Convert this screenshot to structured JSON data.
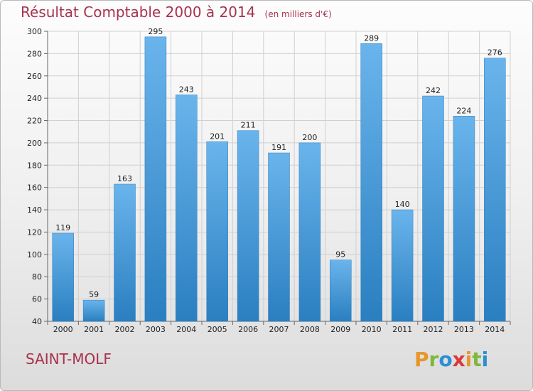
{
  "header": {
    "title": "Résultat Comptable 2000 à 2014",
    "subtitle": "(en milliers d'€)"
  },
  "footer": {
    "commune": "SAINT-MOLF",
    "logo_text": "Proxiti",
    "logo_colors": [
      "#e8962a",
      "#7db83a",
      "#2a8fd6",
      "#d83a3a",
      "#e8962a",
      "#7db83a",
      "#2a8fd6"
    ]
  },
  "colors": {
    "bar_light": "#6ab4ec",
    "bar_dark": "#2a7fc0",
    "grid": "#d0d0d0",
    "accent": "#a8324e"
  },
  "chart_data": {
    "type": "bar",
    "title": "Résultat Comptable 2000 à 2014",
    "xlabel": "",
    "ylabel": "",
    "categories": [
      "2000",
      "2001",
      "2002",
      "2003",
      "2004",
      "2005",
      "2006",
      "2007",
      "2008",
      "2009",
      "2010",
      "2011",
      "2012",
      "2013",
      "2014"
    ],
    "values": [
      119,
      59,
      163,
      295,
      243,
      201,
      211,
      191,
      200,
      95,
      289,
      140,
      242,
      224,
      276
    ],
    "value_labels": [
      "119",
      "59",
      "163",
      "295",
      "243",
      "201",
      "211",
      "191",
      "200",
      "95",
      "289",
      "140",
      "242",
      "224",
      "276"
    ],
    "ylim": [
      40,
      300
    ],
    "yticks": [
      40,
      60,
      80,
      100,
      120,
      140,
      160,
      180,
      200,
      220,
      240,
      260,
      280,
      300
    ],
    "ytick_labels": [
      "40",
      "60",
      "80",
      "100",
      "120",
      "140",
      "160",
      "180",
      "200",
      "220",
      "240",
      "260",
      "280",
      "300"
    ],
    "grid": true
  }
}
